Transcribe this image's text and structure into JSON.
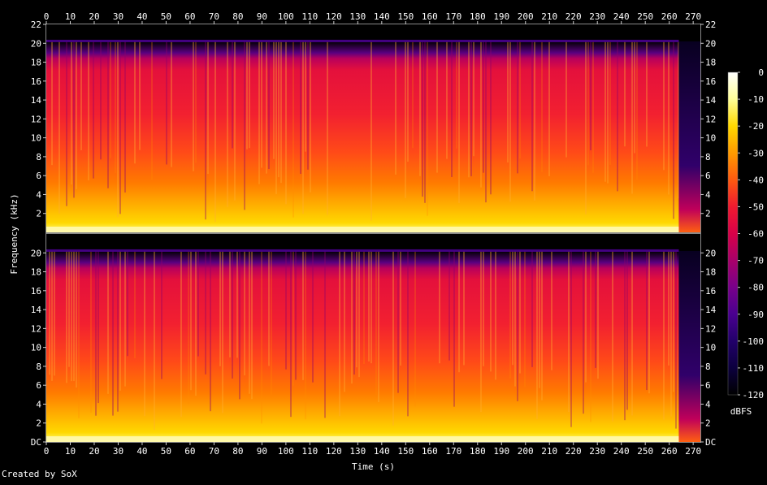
{
  "chart_data": {
    "type": "heatmap",
    "subtype": "spectrogram",
    "channels": 2,
    "xlabel": "Time (s)",
    "ylabel": "Frequency (kHz)",
    "x_range": [
      0,
      273
    ],
    "x_ticks": [
      "0",
      "10",
      "20",
      "30",
      "40",
      "50",
      "60",
      "70",
      "80",
      "90",
      "100",
      "110",
      "120",
      "130",
      "140",
      "150",
      "160",
      "170",
      "180",
      "190",
      "200",
      "210",
      "220",
      "230",
      "240",
      "250",
      "260",
      "270"
    ],
    "x_tick_values": [
      0,
      10,
      20,
      30,
      40,
      50,
      60,
      70,
      80,
      90,
      100,
      110,
      120,
      130,
      140,
      150,
      160,
      170,
      180,
      190,
      200,
      210,
      220,
      230,
      240,
      250,
      260,
      270
    ],
    "y_range_khz": [
      0,
      22
    ],
    "y_ticks_top": [
      "2",
      "4",
      "6",
      "8",
      "10",
      "12",
      "14",
      "16",
      "18",
      "20",
      "22"
    ],
    "y_ticks_bottom": [
      "DC",
      "2",
      "4",
      "6",
      "8",
      "10",
      "12",
      "14",
      "16",
      "18",
      "20"
    ],
    "y_tick_values_top": [
      2,
      4,
      6,
      8,
      10,
      12,
      14,
      16,
      18,
      20,
      22
    ],
    "y_tick_values_bottom": [
      0,
      2,
      4,
      6,
      8,
      10,
      12,
      14,
      16,
      18,
      20
    ],
    "lowpass_cutoff_khz": 20.2,
    "audio_end_s": 264,
    "colorbar": {
      "label": "dBFS",
      "range_db": [
        -120,
        0
      ],
      "ticks": [
        "0",
        "-10",
        "-20",
        "-30",
        "-40",
        "-50",
        "-60",
        "-70",
        "-80",
        "-90",
        "-100",
        "-110",
        "-120"
      ],
      "tick_values": [
        0,
        -10,
        -20,
        -30,
        -40,
        -50,
        -60,
        -70,
        -80,
        -90,
        -100,
        -110,
        -120
      ],
      "colors": [
        "#ffffff",
        "#ffff99",
        "#ffd800",
        "#ff9a00",
        "#ff5a10",
        "#f01a30",
        "#d80048",
        "#a8006a",
        "#78008a",
        "#4a0090",
        "#22006a",
        "#0c003e",
        "#000000"
      ]
    },
    "grid": false,
    "legend": "right"
  },
  "footer": {
    "credit": "Created by SoX"
  }
}
